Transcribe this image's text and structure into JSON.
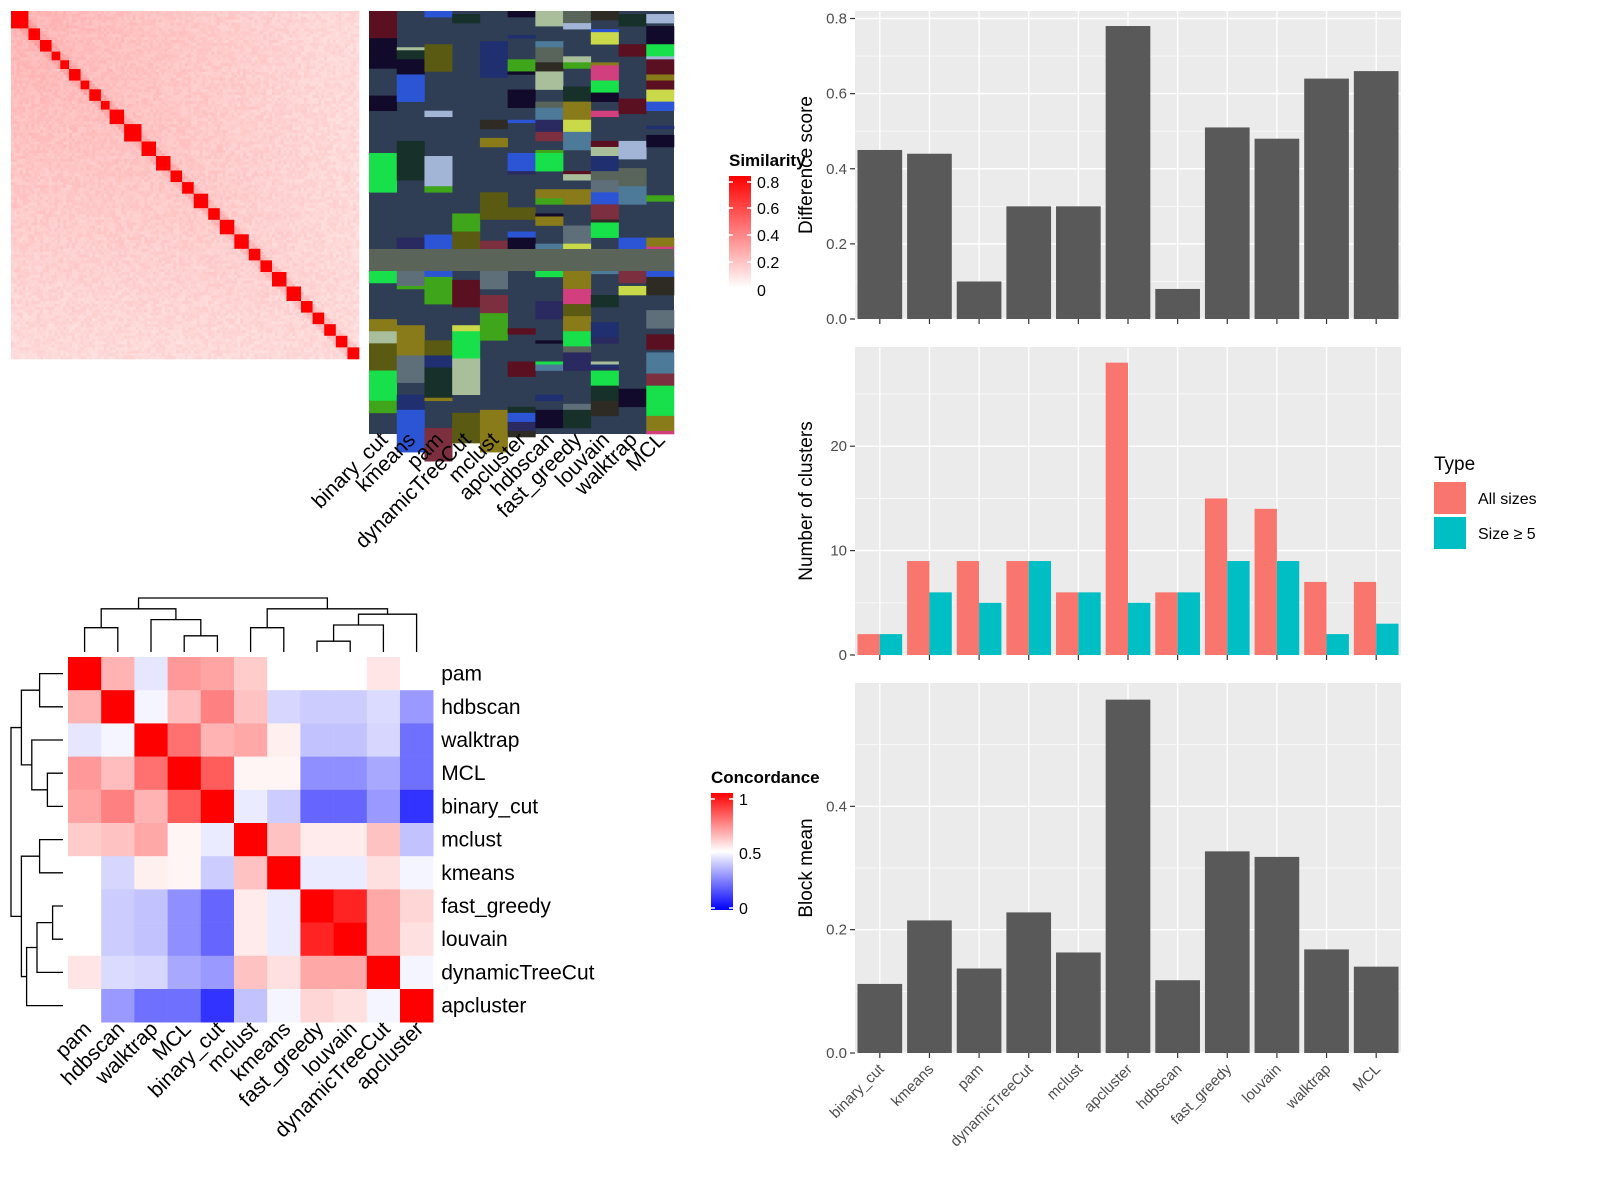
{
  "methods_order": [
    "binary_cut",
    "kmeans",
    "pam",
    "dynamicTreeCut",
    "mclust",
    "apcluster",
    "hdbscan",
    "fast_greedy",
    "louvain",
    "walktrap",
    "MCL"
  ],
  "colors": {
    "bar_gray": "#595959",
    "panel_bg": "#ebebeb",
    "grid": "#ffffff",
    "all_sizes": "#f8766d",
    "size_ge5": "#00bfc4",
    "high_red": "#ff0000",
    "mid_white": "#ffffff",
    "low_blue": "#0000ff"
  },
  "similarity_heatmap": {
    "legend_title": "Similarity",
    "legend_ticks": [
      "0.8",
      "0.6",
      "0.4",
      "0.2",
      "0"
    ]
  },
  "partition_heatmap": {
    "columns": [
      "binary_cut",
      "kmeans",
      "pam",
      "dynamicTreeCut",
      "mclust",
      "apcluster",
      "hdbscan",
      "fast_greedy",
      "louvain",
      "walktrap",
      "MCL"
    ]
  },
  "concordance_heatmap": {
    "legend_title": "Concordance",
    "legend_ticks": [
      "1",
      "0.5",
      "0"
    ],
    "order": [
      "pam",
      "hdbscan",
      "walktrap",
      "MCL",
      "binary_cut",
      "mclust",
      "kmeans",
      "fast_greedy",
      "louvain",
      "dynamicTreeCut",
      "apcluster"
    ],
    "matrix": [
      [
        1.0,
        0.65,
        0.45,
        0.7,
        0.68,
        0.6,
        0.5,
        0.5,
        0.5,
        0.55,
        0.5
      ],
      [
        0.65,
        1.0,
        0.48,
        0.63,
        0.75,
        0.62,
        0.42,
        0.4,
        0.4,
        0.43,
        0.3
      ],
      [
        0.45,
        0.48,
        1.0,
        0.78,
        0.65,
        0.67,
        0.53,
        0.38,
        0.38,
        0.42,
        0.22
      ],
      [
        0.7,
        0.63,
        0.78,
        1.0,
        0.82,
        0.52,
        0.52,
        0.28,
        0.28,
        0.33,
        0.22
      ],
      [
        0.68,
        0.75,
        0.65,
        0.82,
        1.0,
        0.46,
        0.4,
        0.2,
        0.2,
        0.3,
        0.1
      ],
      [
        0.6,
        0.62,
        0.67,
        0.52,
        0.46,
        1.0,
        0.62,
        0.54,
        0.54,
        0.62,
        0.38
      ],
      [
        0.5,
        0.42,
        0.53,
        0.52,
        0.4,
        0.62,
        1.0,
        0.46,
        0.46,
        0.56,
        0.48
      ],
      [
        0.5,
        0.4,
        0.38,
        0.28,
        0.2,
        0.54,
        0.46,
        1.0,
        0.93,
        0.67,
        0.58
      ],
      [
        0.5,
        0.4,
        0.38,
        0.28,
        0.2,
        0.54,
        0.46,
        0.93,
        1.0,
        0.67,
        0.56
      ],
      [
        0.55,
        0.43,
        0.42,
        0.33,
        0.3,
        0.62,
        0.56,
        0.67,
        0.67,
        1.0,
        0.48
      ],
      [
        0.5,
        0.3,
        0.22,
        0.22,
        0.1,
        0.38,
        0.48,
        0.58,
        0.56,
        0.48,
        1.0
      ]
    ]
  },
  "chart_data": [
    {
      "type": "bar",
      "title": "",
      "xlabel": "",
      "ylabel": "Difference score",
      "categories": [
        "binary_cut",
        "kmeans",
        "pam",
        "dynamicTreeCut",
        "mclust",
        "apcluster",
        "hdbscan",
        "fast_greedy",
        "louvain",
        "walktrap",
        "MCL"
      ],
      "values": [
        0.45,
        0.44,
        0.1,
        0.3,
        0.3,
        0.78,
        0.08,
        0.51,
        0.48,
        0.64,
        0.66
      ],
      "ylim": [
        0,
        0.82
      ],
      "yticks": [
        "0.0",
        "0.2",
        "0.4",
        "0.6",
        "0.8"
      ],
      "grid": true
    },
    {
      "type": "bar",
      "title": "",
      "xlabel": "",
      "ylabel": "Number of clusters",
      "categories": [
        "binary_cut",
        "kmeans",
        "pam",
        "dynamicTreeCut",
        "mclust",
        "apcluster",
        "hdbscan",
        "fast_greedy",
        "louvain",
        "walktrap",
        "MCL"
      ],
      "series": [
        {
          "name": "All sizes",
          "values": [
            2,
            9,
            9,
            9,
            6,
            28,
            6,
            15,
            14,
            7,
            7
          ]
        },
        {
          "name": "Size ≥ 5",
          "values": [
            2,
            6,
            5,
            9,
            6,
            5,
            6,
            9,
            9,
            2,
            3
          ]
        }
      ],
      "legend_title": "Type",
      "legend_position": "right",
      "ylim": [
        0,
        29.5
      ],
      "yticks": [
        "0",
        "10",
        "20"
      ],
      "grid": true
    },
    {
      "type": "bar",
      "title": "",
      "xlabel": "",
      "ylabel": "Block mean",
      "categories": [
        "binary_cut",
        "kmeans",
        "pam",
        "dynamicTreeCut",
        "mclust",
        "apcluster",
        "hdbscan",
        "fast_greedy",
        "louvain",
        "walktrap",
        "MCL"
      ],
      "values": [
        0.112,
        0.215,
        0.137,
        0.228,
        0.163,
        0.573,
        0.118,
        0.327,
        0.318,
        0.168,
        0.14
      ],
      "ylim": [
        0,
        0.6
      ],
      "yticks": [
        "0.0",
        "0.2",
        "0.4"
      ],
      "grid": true
    }
  ]
}
